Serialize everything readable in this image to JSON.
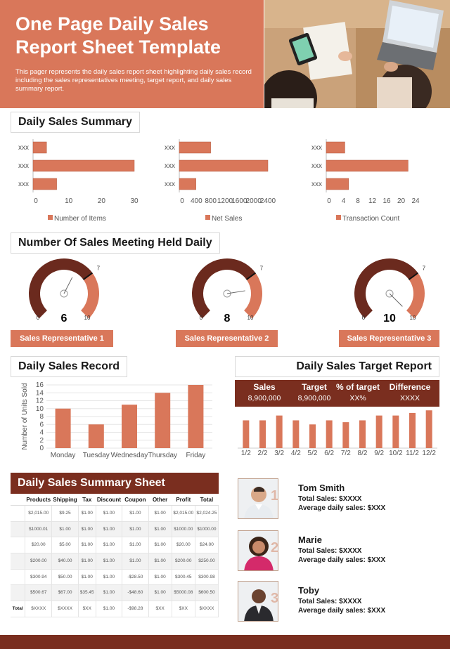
{
  "header": {
    "title": "One Page Daily Sales Report Sheet Template",
    "description": "This pager represents the daily sales report sheet highlighting daily sales record including the sales representatives meeting, target report, and daily sales summary report."
  },
  "summary": {
    "title": "Daily Sales Summary",
    "charts": [
      {
        "type": "bar",
        "categories": [
          "xxx",
          "xxx",
          "xxx"
        ],
        "values": [
          4,
          30,
          7
        ],
        "xlim": [
          0,
          30
        ],
        "ticks": [
          "0",
          "10",
          "20",
          "30"
        ],
        "legend": "Number of Items"
      },
      {
        "type": "bar",
        "categories": [
          "xxx",
          "xxx",
          "xxx"
        ],
        "values": [
          850,
          2400,
          450
        ],
        "xlim": [
          0,
          2400
        ],
        "ticks": [
          "0",
          "400",
          "800",
          "1200",
          "1600",
          "2000",
          "2400"
        ],
        "legend": "Net Sales"
      },
      {
        "type": "bar",
        "categories": [
          "xxx",
          "xxx",
          "xxx"
        ],
        "values": [
          5,
          22,
          6
        ],
        "xlim": [
          0,
          24
        ],
        "ticks": [
          "0",
          "4",
          "8",
          "12",
          "16",
          "20",
          "24"
        ],
        "legend": "Transaction Count"
      }
    ]
  },
  "meetings": {
    "title": "Number Of Sales Meeting Held Daily",
    "gauges": [
      {
        "value": 6,
        "target": 7,
        "min": 0,
        "max": 10,
        "value_label": "6",
        "target_label": "7",
        "min_label": "0",
        "max_label": "10",
        "rep": "Sales Representative 1"
      },
      {
        "value": 8,
        "target": 7,
        "min": 0,
        "max": 10,
        "value_label": "8",
        "target_label": "7",
        "min_label": "0",
        "max_label": "10",
        "rep": "Sales Representative 2"
      },
      {
        "value": 10,
        "target": 7,
        "min": 0,
        "max": 10,
        "value_label": "10",
        "target_label": "7",
        "min_label": "0",
        "max_label": "10",
        "rep": "Sales Representative 3"
      }
    ]
  },
  "record": {
    "title": "Daily Sales Record",
    "ylabel": "Number of Units Sold",
    "categories": [
      "Monday",
      "Tuesday",
      "Wednesday",
      "Thursday",
      "Friday"
    ],
    "values": [
      10,
      6,
      11,
      14,
      16
    ],
    "ylim": [
      0,
      16
    ],
    "ticks": [
      "0",
      "2",
      "4",
      "6",
      "8",
      "10",
      "12",
      "14",
      "16"
    ]
  },
  "target": {
    "title": "Daily Sales Target Report",
    "cols": [
      {
        "label": "Sales",
        "value": "8,900,000"
      },
      {
        "label": "Target",
        "value": "8,900,000"
      },
      {
        "label": "% of target",
        "value": "XX%"
      },
      {
        "label": "Difference",
        "value": "XXXX"
      }
    ],
    "categories": [
      "1/2",
      "2/2",
      "3/2",
      "4/2",
      "5/2",
      "6/2",
      "7/2",
      "8/2",
      "9/2",
      "10/2",
      "11/2",
      "12/2"
    ],
    "values": [
      7.5,
      7.5,
      8.8,
      7.5,
      6.4,
      7.5,
      7.0,
      7.5,
      8.8,
      8.8,
      9.5,
      10.2
    ],
    "ylim": [
      0,
      11
    ]
  },
  "sheet": {
    "title": "Daily Sales Summary Sheet",
    "headers": [
      "Products",
      "Shipping",
      "Tax",
      "Discount",
      "Coupon",
      "Other",
      "Profit",
      "Total"
    ],
    "rows": [
      [
        "$2,015.00",
        "$9.25",
        "$1.00",
        "$1.00",
        "$1.00",
        "$1.00",
        "$2,015.00",
        "$2,024.25"
      ],
      [
        "$1000.01",
        "$1.00",
        "$1.00",
        "$1.00",
        "$1.00",
        "$1.00",
        "$1000.00",
        "$1000.00"
      ],
      [
        "$20.00",
        "$5.00",
        "$1.00",
        "$1.00",
        "$1.00",
        "$1.00",
        "$20.00",
        "$24.00"
      ],
      [
        "$200.00",
        "$40.00",
        "$1.00",
        "$1.00",
        "$1.00",
        "$1.00",
        "$200.00",
        "$250.00"
      ],
      [
        "$300.94",
        "$50.00",
        "$1.00",
        "$1.00",
        "-$28.50",
        "$1.00",
        "$300.45",
        "$300.98"
      ],
      [
        "$500.67",
        "$67.00",
        "$35.45",
        "$1.00",
        "-$48.60",
        "$1.00",
        "$5000.08",
        "$600.50"
      ]
    ],
    "total_row": [
      "Total",
      "$XXXX",
      "$XXXX",
      "$XX",
      "$1.00",
      "-$98.28",
      "$XX",
      "$XX",
      "$XXXX"
    ]
  },
  "reps": [
    {
      "num": "1",
      "name": "Tom Smith",
      "total": "Total Sales: $XXXX",
      "avg": "Average daily sales: $XXX"
    },
    {
      "num": "2",
      "name": "Marie",
      "total": "Total Sales: $XXXX",
      "avg": "Average daily sales: $XXX"
    },
    {
      "num": "3",
      "name": "Toby",
      "total": "Total Sales: $XXXX",
      "avg": "Average daily sales: $XXX"
    }
  ],
  "chart_data": [
    {
      "type": "bar",
      "title": "Daily Sales Summary - Number of Items",
      "categories": [
        "xxx",
        "xxx",
        "xxx"
      ],
      "values": [
        4,
        30,
        7
      ],
      "xlim": [
        0,
        30
      ]
    },
    {
      "type": "bar",
      "title": "Daily Sales Summary - Net Sales",
      "categories": [
        "xxx",
        "xxx",
        "xxx"
      ],
      "values": [
        850,
        2400,
        450
      ],
      "xlim": [
        0,
        2400
      ]
    },
    {
      "type": "bar",
      "title": "Daily Sales Summary - Transaction Count",
      "categories": [
        "xxx",
        "xxx",
        "xxx"
      ],
      "values": [
        5,
        22,
        6
      ],
      "xlim": [
        0,
        24
      ]
    },
    {
      "type": "bar",
      "title": "Daily Sales Record",
      "ylabel": "Number of Units Sold",
      "categories": [
        "Monday",
        "Tuesday",
        "Wednesday",
        "Thursday",
        "Friday"
      ],
      "values": [
        10,
        6,
        11,
        14,
        16
      ],
      "ylim": [
        0,
        16
      ]
    },
    {
      "type": "bar",
      "title": "Daily Sales Target Report",
      "categories": [
        "1/2",
        "2/2",
        "3/2",
        "4/2",
        "5/2",
        "6/2",
        "7/2",
        "8/2",
        "9/2",
        "10/2",
        "11/2",
        "12/2"
      ],
      "values": [
        7.5,
        7.5,
        8.8,
        7.5,
        6.4,
        7.5,
        7.0,
        7.5,
        8.8,
        8.8,
        9.5,
        10.2
      ]
    }
  ],
  "colors": {
    "accent": "#d9775a",
    "dark": "#7a2e1f",
    "gauge_dark": "#6b2a1e"
  }
}
